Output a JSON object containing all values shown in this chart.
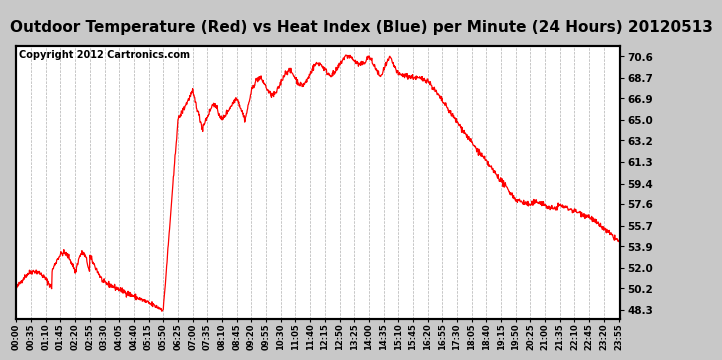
{
  "title": "Outdoor Temperature (Red) vs Heat Index (Blue) per Minute (24 Hours) 20120513",
  "copyright": "Copyright 2012 Cartronics.com",
  "background_color": "#c8c8c8",
  "plot_bg_color": "#ffffff",
  "line_color": "red",
  "yticks": [
    48.3,
    50.2,
    52.0,
    53.9,
    55.7,
    57.6,
    59.4,
    61.3,
    63.2,
    65.0,
    66.9,
    68.7,
    70.6
  ],
  "ylim": [
    47.5,
    71.5
  ],
  "grid_color": "#b0b0b0",
  "title_fontsize": 11,
  "copyright_fontsize": 7,
  "xtick_labels": [
    "00:00",
    "00:35",
    "01:10",
    "01:45",
    "02:20",
    "02:55",
    "03:30",
    "04:05",
    "04:40",
    "05:15",
    "05:50",
    "06:25",
    "07:00",
    "07:35",
    "08:10",
    "08:45",
    "09:20",
    "09:55",
    "10:30",
    "11:05",
    "11:40",
    "12:15",
    "12:50",
    "13:25",
    "14:00",
    "14:35",
    "15:10",
    "15:45",
    "16:20",
    "16:55",
    "17:30",
    "18:05",
    "18:40",
    "19:15",
    "19:50",
    "20:25",
    "21:00",
    "21:35",
    "22:10",
    "22:45",
    "23:20",
    "23:55"
  ],
  "line_width": 0.9,
  "noise_seed": 42,
  "noise_std": 0.12
}
